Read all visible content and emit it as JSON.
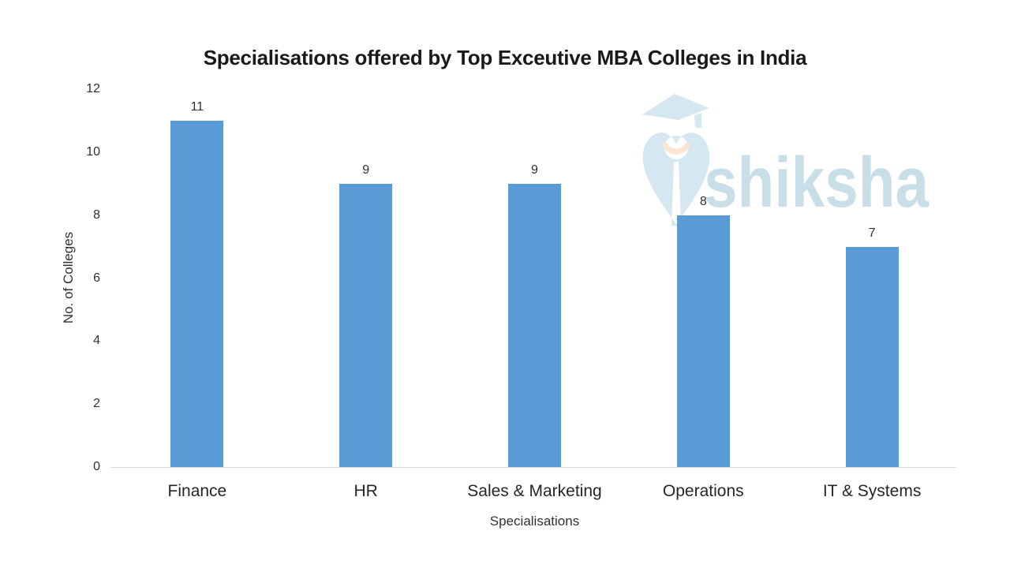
{
  "chart_data": {
    "type": "bar",
    "title": "Specialisations offered by Top Exceutive MBA Colleges in India",
    "categories": [
      "Finance",
      "HR",
      "Sales & Marketing",
      "Operations",
      "IT & Systems"
    ],
    "values": [
      11,
      9,
      9,
      8,
      7
    ],
    "data_labels": [
      "11",
      "9",
      "9",
      "8",
      "7"
    ],
    "xlabel": "Specialisations",
    "ylabel": "No. of Colleges",
    "ylim": [
      0,
      12
    ],
    "yticks": [
      0,
      2,
      4,
      6,
      8,
      10,
      12
    ],
    "grid": false,
    "legend": false,
    "bar_color": "#5b9bd5",
    "axis_line_color": "#d9d9d9",
    "title_color": "#1a1a1a",
    "label_color": "#303030"
  },
  "watermark": {
    "text": "shiksha",
    "icon": "shiksha-graduation-cap-pen-nib-icon",
    "text_color": "#c8dee9",
    "icon_color": "#d5e7f1",
    "accent_color": "#fae6d0"
  }
}
